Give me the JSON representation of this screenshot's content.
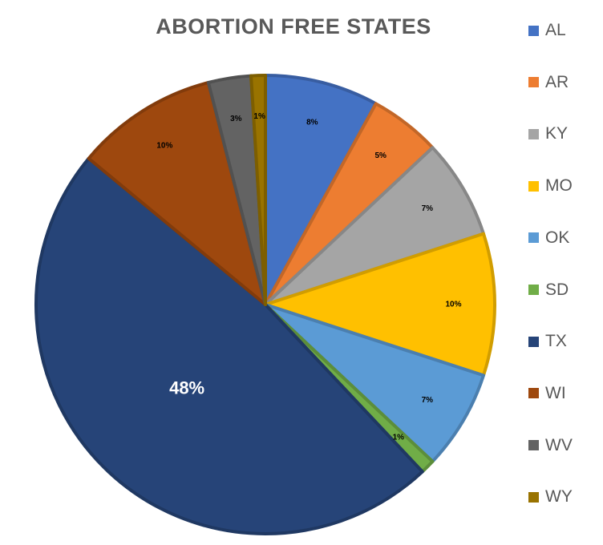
{
  "chart_data": {
    "type": "pie",
    "title": "ABORTION FREE STATES",
    "categories": [
      "AL",
      "AR",
      "KY",
      "MO",
      "OK",
      "SD",
      "TX",
      "WI",
      "WV",
      "WY"
    ],
    "values": [
      8,
      5,
      7,
      10,
      7,
      1,
      48,
      10,
      3,
      1
    ],
    "labels": [
      "8%",
      "5%",
      "7%",
      "10%",
      "7%",
      "1%",
      "48%",
      "10%",
      "3%",
      "1%"
    ],
    "colors": [
      "#4472C4",
      "#ED7D31",
      "#A5A5A5",
      "#FFC000",
      "#5B9BD5",
      "#70AD47",
      "#264478",
      "#9E480E",
      "#636363",
      "#997300"
    ],
    "legend": "right",
    "start_angle_deg": 0,
    "direction": "clockwise"
  }
}
